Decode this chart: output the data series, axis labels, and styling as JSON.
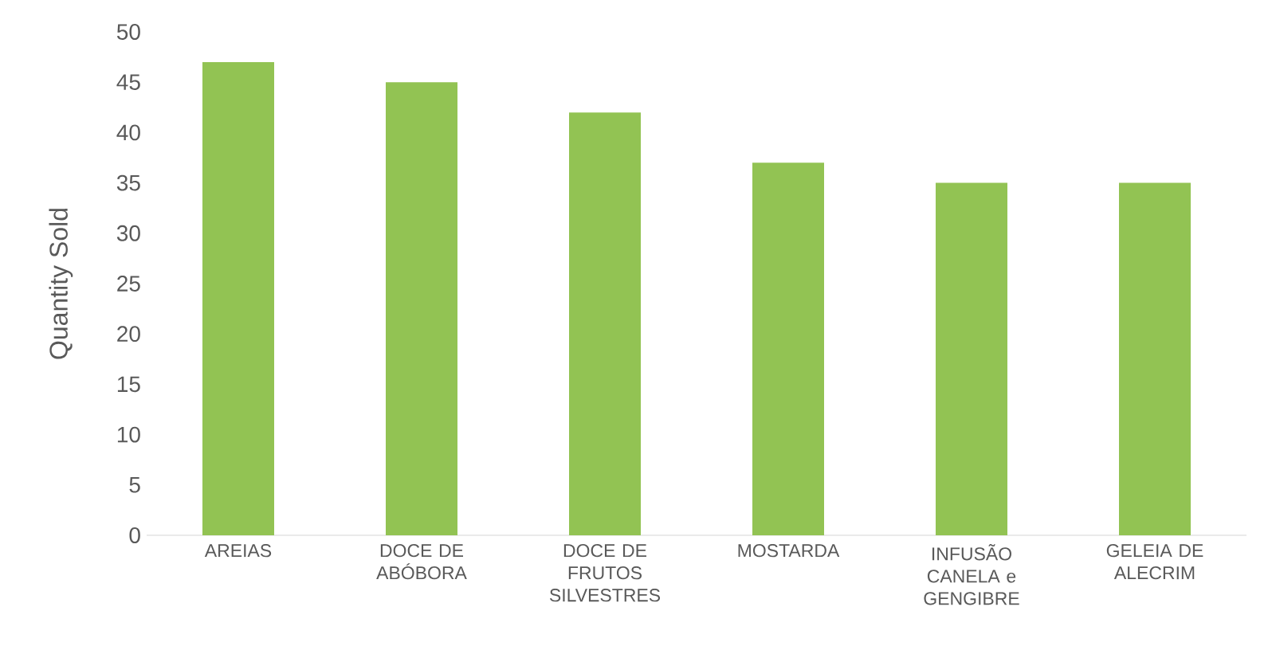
{
  "chart_data": {
    "type": "bar",
    "ylabel": "Quantity Sold",
    "categories": [
      "AREIAS",
      "DOCE DE ABÓBORA",
      "DOCE DE FRUTOS SILVESTRES",
      "MOSTARDA",
      "INFUSÃO CANELA e GENGIBRE",
      "GELEIA DE ALECRIM"
    ],
    "values": [
      47,
      45,
      42,
      37,
      35,
      35
    ],
    "color": "#92c353",
    "ylim": [
      0,
      50
    ],
    "yticks": [
      0,
      5,
      10,
      15,
      20,
      25,
      30,
      35,
      40,
      45,
      50
    ],
    "grid": false
  }
}
